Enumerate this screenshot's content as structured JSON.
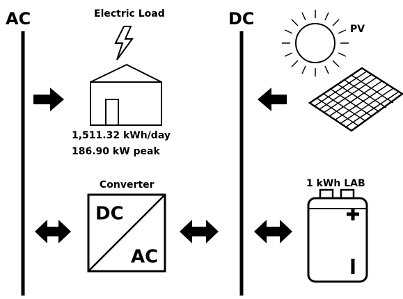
{
  "buses": {
    "ac": "AC",
    "dc": "DC"
  },
  "load": {
    "title": "Electric Load",
    "energy": "1,511.32 kWh/day",
    "peak": "186.90 kW peak"
  },
  "pv": {
    "label": "PV"
  },
  "converter": {
    "title": "Converter",
    "input": "DC",
    "output": "AC"
  },
  "battery": {
    "label": "1 kWh LAB"
  }
}
